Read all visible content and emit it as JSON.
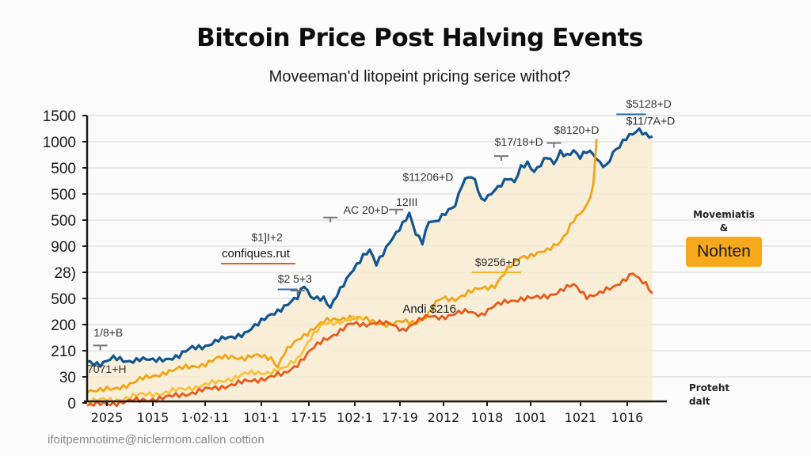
{
  "chart_data": {
    "type": "line",
    "title": "Bitcoin Price Post Halving Events",
    "subtitle": "Moveeman'd litopeint pricing serice withot?",
    "xlabel": "",
    "ylabel": "",
    "grid": true,
    "y_tick_labels": [
      "1500",
      "1000",
      "500",
      "500",
      "500",
      "900",
      "28)",
      "500",
      "200",
      "210",
      "30",
      "0"
    ],
    "x_tick_labels": [
      "2025",
      "1015",
      "1·02·11",
      "101·1",
      "17·15",
      "102·1",
      "17·19",
      "2012",
      "1018",
      "1001",
      "1021",
      "1016"
    ],
    "y_index_range": [
      0,
      11
    ],
    "x_index_range": [
      0,
      100
    ],
    "series": [
      {
        "name": "blue",
        "color": "#12558f",
        "points": [
          [
            0,
            9.4
          ],
          [
            2,
            9.5
          ],
          [
            4,
            9.3
          ],
          [
            6,
            9.4
          ],
          [
            8,
            9.3
          ],
          [
            10,
            9.4
          ],
          [
            12,
            9.3
          ],
          [
            14,
            9.2
          ],
          [
            16,
            8.9
          ],
          [
            18,
            8.8
          ],
          [
            20,
            8.6
          ],
          [
            22,
            8.5
          ],
          [
            24,
            8.3
          ],
          [
            26,
            8.0
          ],
          [
            28,
            7.6
          ],
          [
            30,
            7.3
          ],
          [
            32,
            7.0
          ],
          [
            33,
            6.5
          ],
          [
            34,
            6.9
          ],
          [
            36,
            7.0
          ],
          [
            37,
            7.4
          ],
          [
            38,
            6.9
          ],
          [
            40,
            6.0
          ],
          [
            42,
            5.4
          ],
          [
            43,
            5.2
          ],
          [
            44,
            5.7
          ],
          [
            46,
            4.8
          ],
          [
            48,
            4.2
          ],
          [
            49,
            3.8
          ],
          [
            50,
            4.5
          ],
          [
            51,
            4.8
          ],
          [
            52,
            4.0
          ],
          [
            53,
            4.1
          ],
          [
            54,
            3.9
          ],
          [
            56,
            3.4
          ],
          [
            57,
            2.6
          ],
          [
            58,
            2.3
          ],
          [
            59,
            2.5
          ],
          [
            60,
            3.3
          ],
          [
            61,
            3.1
          ],
          [
            62,
            2.8
          ],
          [
            64,
            2.4
          ],
          [
            65,
            2.6
          ],
          [
            66,
            2.0
          ],
          [
            67,
            1.8
          ],
          [
            68,
            2.1
          ],
          [
            70,
            1.6
          ],
          [
            71,
            1.9
          ],
          [
            72,
            1.4
          ],
          [
            73,
            1.5
          ],
          [
            74,
            1.3
          ],
          [
            75,
            1.6
          ],
          [
            76,
            1.4
          ],
          [
            77,
            1.5
          ],
          [
            78,
            1.8
          ],
          [
            79,
            1.9
          ],
          [
            80,
            1.4
          ],
          [
            81,
            1.2
          ],
          [
            82,
            0.9
          ],
          [
            83,
            0.7
          ],
          [
            84,
            0.5
          ],
          [
            85,
            0.7
          ],
          [
            86,
            0.8
          ]
        ]
      },
      {
        "name": "yellow",
        "color": "#f2a413",
        "points": [
          [
            0,
            10.5
          ],
          [
            4,
            10.5
          ],
          [
            6,
            10.3
          ],
          [
            8,
            10.1
          ],
          [
            10,
            10.0
          ],
          [
            12,
            9.8
          ],
          [
            14,
            9.7
          ],
          [
            16,
            9.6
          ],
          [
            18,
            9.5
          ],
          [
            20,
            9.3
          ],
          [
            22,
            9.2
          ],
          [
            24,
            9.3
          ],
          [
            26,
            9.2
          ],
          [
            28,
            9.25
          ],
          [
            29,
            9.6
          ],
          [
            30,
            9.1
          ],
          [
            32,
            8.6
          ],
          [
            34,
            8.2
          ],
          [
            36,
            7.9
          ],
          [
            38,
            7.8
          ],
          [
            40,
            7.7
          ],
          [
            42,
            7.8
          ],
          [
            44,
            7.9
          ],
          [
            46,
            8.0
          ],
          [
            48,
            7.9
          ],
          [
            50,
            7.9
          ],
          [
            52,
            7.6
          ],
          [
            53,
            7.2
          ],
          [
            54,
            7.0
          ],
          [
            56,
            7.0
          ],
          [
            58,
            6.8
          ],
          [
            60,
            6.6
          ],
          [
            62,
            6.5
          ],
          [
            64,
            5.9
          ],
          [
            66,
            5.4
          ],
          [
            68,
            5.3
          ],
          [
            70,
            5.2
          ],
          [
            72,
            4.8
          ],
          [
            73,
            4.4
          ],
          [
            74,
            4.0
          ],
          [
            75,
            3.8
          ],
          [
            76,
            3.5
          ],
          [
            77,
            2.7
          ],
          [
            77.5,
            0.9
          ]
        ]
      },
      {
        "name": "light-yellow",
        "color": "#f8c23d",
        "points": [
          [
            0,
            10.9
          ],
          [
            4,
            10.9
          ],
          [
            8,
            10.7
          ],
          [
            12,
            10.6
          ],
          [
            16,
            10.4
          ],
          [
            20,
            10.2
          ],
          [
            24,
            9.9
          ],
          [
            28,
            9.8
          ],
          [
            30,
            9.7
          ],
          [
            32,
            9.3
          ],
          [
            34,
            8.5
          ],
          [
            36,
            8.0
          ],
          [
            38,
            7.9
          ],
          [
            40,
            7.8
          ],
          [
            42,
            7.8
          ]
        ]
      },
      {
        "name": "orange",
        "color": "#e8591a",
        "points": [
          [
            0,
            11.1
          ],
          [
            4,
            11.0
          ],
          [
            8,
            10.9
          ],
          [
            12,
            10.8
          ],
          [
            16,
            10.6
          ],
          [
            20,
            10.4
          ],
          [
            24,
            10.2
          ],
          [
            28,
            10.0
          ],
          [
            30,
            9.9
          ],
          [
            32,
            9.5
          ],
          [
            34,
            9.0
          ],
          [
            36,
            8.6
          ],
          [
            38,
            8.3
          ],
          [
            40,
            8.0
          ],
          [
            42,
            8.0
          ],
          [
            44,
            7.9
          ],
          [
            46,
            8.0
          ],
          [
            48,
            8.2
          ],
          [
            50,
            7.9
          ],
          [
            52,
            7.7
          ],
          [
            54,
            7.7
          ],
          [
            56,
            7.6
          ],
          [
            58,
            7.5
          ],
          [
            60,
            7.6
          ],
          [
            62,
            7.3
          ],
          [
            64,
            7.1
          ],
          [
            66,
            7.0
          ],
          [
            68,
            7.0
          ],
          [
            70,
            6.9
          ],
          [
            72,
            6.7
          ],
          [
            74,
            6.5
          ],
          [
            75,
            6.7
          ],
          [
            76,
            6.9
          ],
          [
            78,
            6.8
          ],
          [
            80,
            6.6
          ],
          [
            82,
            6.2
          ],
          [
            83,
            6.0
          ],
          [
            84,
            6.3
          ],
          [
            85,
            6.5
          ],
          [
            86,
            6.8
          ]
        ]
      }
    ],
    "annotations": [
      {
        "text": "$5128+D",
        "x": 82,
        "y": -0.3
      },
      {
        "text": "$11/7A+D",
        "x": 82,
        "y": 0.35
      },
      {
        "text": "$8120+D",
        "x": 71,
        "y": 0.7
      },
      {
        "text": "$17/18+D",
        "x": 62,
        "y": 1.15
      },
      {
        "text": "$11206+D",
        "x": 48,
        "y": 2.5
      },
      {
        "text": "12III",
        "x": 47,
        "y": 3.45
      },
      {
        "text": "AC 20+D",
        "x": 39,
        "y": 3.75
      },
      {
        "text": "$1]I+2",
        "x": 25,
        "y": 4.8
      },
      {
        "text": "$2 5+3",
        "x": 29,
        "y": 6.4
      },
      {
        "text": "$9256+D",
        "x": 59,
        "y": 5.75
      },
      {
        "text": "Andi $216",
        "x": 48,
        "y": 7.55
      },
      {
        "text": "1/8+B",
        "x": 1,
        "y": 8.45
      },
      {
        "text": "7071+H",
        "x": 0,
        "y": 9.85
      }
    ],
    "callout_label": "confiques.rut"
  },
  "legend": {
    "top_label_1": "Movemiatis",
    "top_label_2": "&",
    "badge_label": "Nohten",
    "badge_color": "#f7a81b",
    "bottom_label_1": "Proteht",
    "bottom_label_2": "dalt"
  },
  "footer": "ifoitpemnotime@niclermom.callon cottion"
}
